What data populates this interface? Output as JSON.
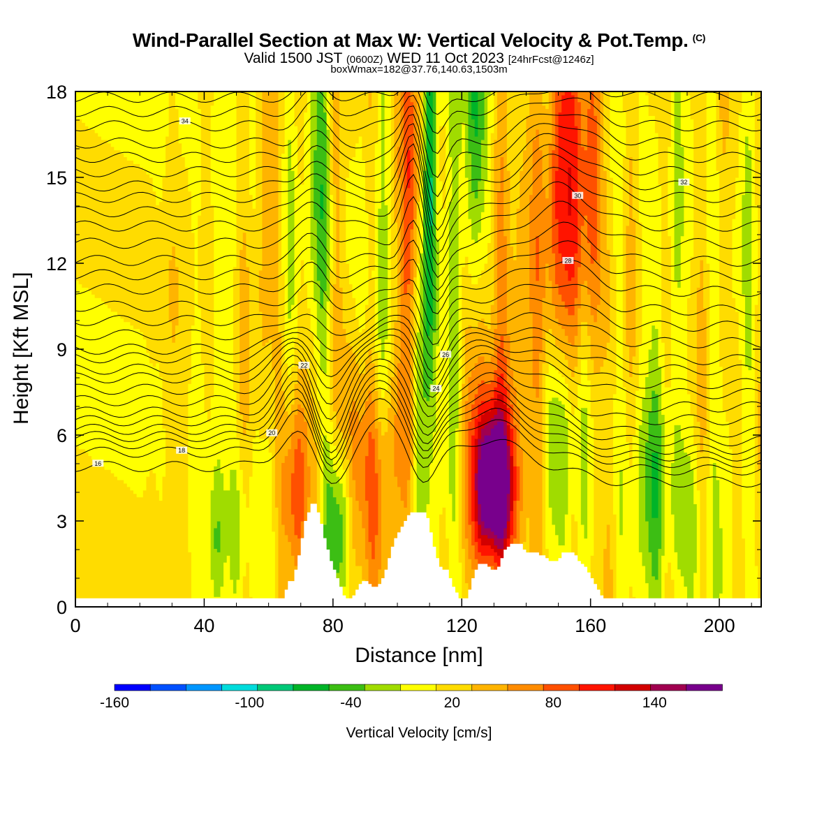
{
  "header": {
    "title": "Wind-Parallel Section at Max W: Vertical Velocity & Pot.Temp.",
    "copyright": "(C)",
    "valid_main": "Valid 1500 JST",
    "valid_utc": "(0600Z)",
    "valid_date": "WED 11 Oct 2023",
    "forecast": "[24hrFcst@1246z]",
    "box_info": "boxWmax=182@37.76,140.63,1503m"
  },
  "chart_data": {
    "type": "heatmap",
    "title": "Wind-Parallel Section at Max W: Vertical Velocity & Pot.Temp.",
    "xlabel": "Distance [nm]",
    "ylabel": "Height [Kft MSL]",
    "xlim": [
      0,
      213
    ],
    "ylim": [
      0,
      18
    ],
    "x_ticks": [
      0,
      40,
      80,
      120,
      160,
      200
    ],
    "y_ticks": [
      0,
      3,
      6,
      9,
      12,
      15,
      18
    ],
    "grid": false,
    "colorbar": {
      "label": "Vertical Velocity [cm/s]",
      "orientation": "horizontal",
      "placement": "bottom",
      "boundaries": [
        -180,
        -160,
        -140,
        -120,
        -100,
        -80,
        -60,
        -40,
        -20,
        0,
        20,
        40,
        60,
        80,
        100,
        120,
        140,
        160,
        180
      ],
      "colors": [
        "#0000ff",
        "#0050ff",
        "#0096ff",
        "#00dcdc",
        "#00c878",
        "#00b428",
        "#3cbe14",
        "#a0dc00",
        "#ffff00",
        "#ffdc00",
        "#ffb400",
        "#ff8c00",
        "#ff5000",
        "#ff1400",
        "#d20000",
        "#a00050",
        "#78008c"
      ],
      "tick_labels": [
        "-160",
        "-100",
        "-40",
        "20",
        "80",
        "140"
      ],
      "tick_values": [
        -160,
        -100,
        -40,
        20,
        80,
        140
      ]
    },
    "terrain": {
      "x": [
        0,
        63,
        65,
        66,
        68,
        69,
        70,
        71,
        72,
        73,
        74,
        75,
        76,
        77,
        78,
        79,
        80,
        81,
        82,
        83,
        84,
        85,
        86,
        87,
        88,
        89,
        90,
        91,
        92,
        93,
        94,
        95,
        96,
        97,
        98,
        99,
        100,
        101,
        102,
        103,
        104,
        105,
        106,
        107,
        108,
        109,
        110,
        111,
        112,
        113,
        114,
        115,
        116,
        117,
        118,
        119,
        120,
        121,
        122,
        123,
        124,
        125,
        126,
        127,
        128,
        129,
        130,
        131,
        132,
        133,
        134,
        135,
        136,
        137,
        138,
        139,
        140,
        141,
        142,
        143,
        144,
        145,
        146,
        147,
        148,
        149,
        150,
        151,
        152,
        153,
        154,
        155,
        156,
        157,
        158,
        159,
        160,
        161,
        162,
        163,
        164,
        165,
        166,
        167,
        213
      ],
      "z": [
        0.3,
        0.3,
        0.6,
        0.9,
        1.3,
        1.8,
        2.4,
        3.0,
        3.3,
        3.6,
        3.6,
        3.3,
        2.9,
        2.4,
        2.0,
        1.6,
        1.3,
        1.0,
        0.7,
        0.4,
        0.3,
        0.3,
        0.4,
        0.6,
        0.8,
        0.9,
        0.9,
        0.8,
        0.7,
        0.7,
        0.8,
        1.0,
        1.3,
        1.7,
        2.1,
        2.4,
        2.6,
        2.8,
        3.0,
        3.2,
        3.3,
        3.3,
        3.3,
        3.3,
        3.3,
        3.1,
        2.6,
        2.1,
        1.7,
        1.4,
        1.3,
        1.3,
        1.0,
        0.7,
        0.5,
        0.3,
        0.3,
        0.3,
        0.6,
        1.0,
        1.3,
        1.5,
        1.5,
        1.5,
        1.4,
        1.3,
        1.3,
        1.4,
        1.7,
        2.0,
        2.1,
        2.2,
        2.2,
        2.2,
        2.2,
        2.0,
        1.9,
        1.9,
        1.9,
        1.9,
        1.8,
        1.8,
        1.7,
        1.6,
        1.6,
        1.6,
        1.7,
        1.9,
        1.9,
        1.9,
        1.9,
        1.8,
        1.6,
        1.5,
        1.4,
        1.2,
        1.0,
        0.8,
        0.6,
        0.4,
        0.3,
        0.3,
        0.3,
        0.3,
        0.3
      ]
    },
    "vertical_velocity_features": [
      {
        "x": 130,
        "z": 4.2,
        "sx": 4,
        "sz": 1.9,
        "w": 182
      },
      {
        "x": 130,
        "z": 6.3,
        "sx": 7,
        "sz": 3.5,
        "w": 55
      },
      {
        "x": 68,
        "z": 4.0,
        "sx": 3,
        "sz": 2.5,
        "w": 85
      },
      {
        "x": 88,
        "z": 4.5,
        "sx": 5,
        "sz": 3.5,
        "w": 70
      },
      {
        "x": 100,
        "z": 6.0,
        "sx": 6,
        "sz": 3.5,
        "w": 45
      },
      {
        "x": 104,
        "z": 15.5,
        "sx": 3,
        "sz": 5,
        "w": 60
      },
      {
        "x": 152,
        "z": 15.5,
        "sx": 5,
        "sz": 5,
        "w": 70
      },
      {
        "x": 160,
        "z": 14.5,
        "sx": 4,
        "sz": 4,
        "w": 55
      },
      {
        "x": 140,
        "z": 13.0,
        "sx": 6,
        "sz": 6,
        "w": 30
      },
      {
        "x": 58,
        "z": 13.5,
        "sx": 4,
        "sz": 6,
        "w": 18
      },
      {
        "x": 30,
        "z": 9.5,
        "sx": 3,
        "sz": 5,
        "w": 12
      },
      {
        "x": 110,
        "z": 15.5,
        "sx": 1.5,
        "sz": 5,
        "w": -110
      },
      {
        "x": 82,
        "z": 3.0,
        "sx": 3,
        "sz": 2.2,
        "w": -80
      },
      {
        "x": 76,
        "z": 14.0,
        "sx": 2,
        "sz": 5,
        "w": -45
      },
      {
        "x": 95,
        "z": 8.0,
        "sx": 3,
        "sz": 3,
        "w": -50
      },
      {
        "x": 106,
        "z": 6.5,
        "sx": 2.5,
        "sz": 4,
        "w": -45
      },
      {
        "x": 124,
        "z": 16.5,
        "sx": 3,
        "sz": 4,
        "w": -60
      },
      {
        "x": 150,
        "z": 6.0,
        "sx": 4,
        "sz": 2.5,
        "w": -45
      },
      {
        "x": 116,
        "z": 5.0,
        "sx": 3,
        "sz": 3,
        "w": -35
      },
      {
        "x": 44,
        "z": 2.0,
        "sx": 2,
        "sz": 2,
        "w": -45
      },
      {
        "x": 51,
        "z": 2.5,
        "sx": 2,
        "sz": 2,
        "w": -35
      },
      {
        "x": 180,
        "z": 4.5,
        "sx": 5,
        "sz": 3,
        "w": -35
      },
      {
        "x": 190,
        "z": 3.0,
        "sx": 3,
        "sz": 2,
        "w": -30
      }
    ],
    "theta_contours": [
      {
        "label": "16",
        "theta": 16,
        "z": 4.9
      },
      {
        "label": "18",
        "theta": 18,
        "z": 5.4
      },
      {
        "label": "20",
        "theta": 20,
        "z": 5.7
      },
      {
        "label": "22",
        "theta": 22,
        "z": 7.2
      },
      {
        "label": "24",
        "theta": 24,
        "z": 8.3
      },
      {
        "label": "26",
        "theta": 26,
        "z": 9.0
      },
      {
        "label": "28",
        "theta": 28,
        "z": 11.1
      },
      {
        "label": "30",
        "theta": 30,
        "z": 13.3
      },
      {
        "label": "32",
        "theta": 32,
        "z": 14.7
      },
      {
        "label": "34",
        "theta": 34,
        "z": 16.8
      }
    ]
  }
}
